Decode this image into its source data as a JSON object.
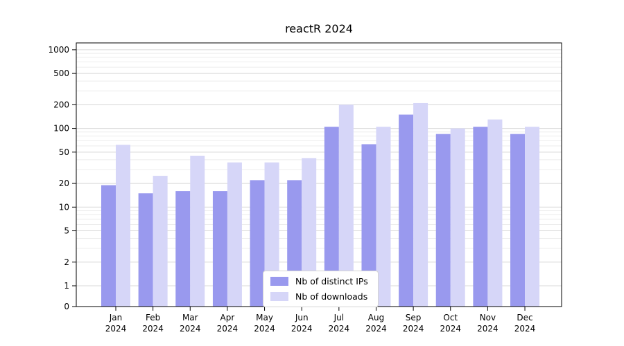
{
  "chart_data": {
    "type": "bar",
    "title": "reactR 2024",
    "categories": [
      "Jan",
      "Feb",
      "Mar",
      "Apr",
      "May",
      "Jun",
      "Jul",
      "Aug",
      "Sep",
      "Oct",
      "Nov",
      "Dec"
    ],
    "category_year": "2024",
    "series": [
      {
        "name": "Nb of distinct IPs",
        "color": "#9999ee",
        "values": [
          19,
          15,
          16,
          16,
          22,
          22,
          105,
          63,
          150,
          85,
          105,
          85
        ]
      },
      {
        "name": "Nb of downloads",
        "color": "#d6d6f8",
        "values": [
          62,
          25,
          45,
          37,
          37,
          42,
          200,
          105,
          210,
          100,
          130,
          105
        ]
      }
    ],
    "yscale": "symlog",
    "yticks": [
      0,
      1,
      2,
      5,
      10,
      20,
      50,
      100,
      200,
      500,
      1000
    ],
    "ylim": [
      0,
      1000
    ],
    "grid": true,
    "legend_position": "bottom-center",
    "axis_color": "#000000",
    "grid_major_color": "#d9d9d9",
    "grid_minor_color": "#ececec",
    "tick_label_color": "#000000"
  }
}
